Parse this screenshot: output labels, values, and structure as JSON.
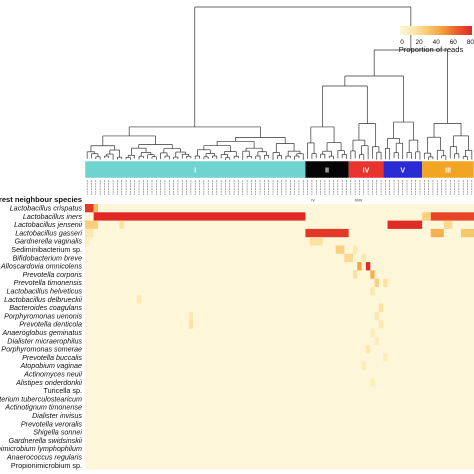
{
  "chart_data": {
    "type": "heatmap",
    "row_header": "rest neighbour species",
    "legend": {
      "title": "Proportion of reads",
      "ticks": [
        0,
        20,
        40,
        60,
        80
      ],
      "colors": [
        "#fdf6d8",
        "#fbe6a8",
        "#f9c56a",
        "#f39a3a",
        "#ea5a2a",
        "#e02a26"
      ]
    },
    "clusters": [
      {
        "label": "I",
        "color": "#6fd3d0",
        "text_color": "#ffffff",
        "count": 51
      },
      {
        "label": "II",
        "color": "#050505",
        "text_color": "#ffffff",
        "count": 10
      },
      {
        "label": "IV",
        "color": "#e8332e",
        "text_color": "#ffffff",
        "count": 8
      },
      {
        "label": "V",
        "color": "#2b2bd6",
        "text_color": "#ffffff",
        "count": 9
      },
      {
        "label": "III",
        "color": "#f2a524",
        "text_color": "#ffffff",
        "count": 12
      }
    ],
    "cluster_sublabels": [
      {
        "cluster": "II",
        "text": "IV"
      },
      {
        "cluster": "IV",
        "text": "IV/IV"
      }
    ],
    "sample_labels_note": "illegible",
    "species": [
      "Lactobacillus crispatus",
      "Lactobacillus iners",
      "Lactobacillus jensenii",
      "Lactobacillus gasseri",
      "Gardnerella vaginalis",
      "Sediminibacterium sp.",
      "Bifidobacterium breve",
      "Alloscardovia omnicolens",
      "Prevotella corporis",
      "Prevotella timonensis",
      "Lactobacillus helveticus",
      "Lactobacillus delbrueckii",
      "Bacteroides coagulans",
      "Porphyromonas uenonis",
      "Prevotella denticola",
      "Anaeroglobus geminatus",
      "Dialister micraerophilus",
      "Porphyromonas somerae",
      "Prevotella buccalis",
      "Atopobium vaginae",
      "Actinomyces neuii",
      "Alistipes onderdonkii",
      "Turicella sp.",
      "acterium tuberculostearicum",
      "Actinotignum timonense",
      "Dialister invisus",
      "Prevotella veroralis",
      "Shigella sonnei",
      "Gardnerella swidsinskii",
      "onimicrobium lymphophilum",
      "Anaerococcus regularis",
      "Propionimicrobium sp."
    ],
    "plain_species": [
      "Sediminibacterium sp.",
      "Turicella sp.",
      "Propionimicrobium sp."
    ],
    "highlights": [
      {
        "row": 0,
        "from": 0,
        "to": 1,
        "value": 85
      },
      {
        "row": 0,
        "from": 2,
        "to": 2,
        "value": 40
      },
      {
        "row": 1,
        "from": 2,
        "to": 50,
        "value": 90
      },
      {
        "row": 1,
        "from": 78,
        "to": 79,
        "value": 30
      },
      {
        "row": 1,
        "from": 80,
        "to": 89,
        "value": 80
      },
      {
        "row": 2,
        "from": 0,
        "to": 2,
        "value": 30
      },
      {
        "row": 2,
        "from": 8,
        "to": 8,
        "value": 20
      },
      {
        "row": 2,
        "from": 70,
        "to": 77,
        "value": 90
      },
      {
        "row": 2,
        "from": 83,
        "to": 84,
        "value": 25
      },
      {
        "row": 3,
        "from": 0,
        "to": 1,
        "value": 15
      },
      {
        "row": 3,
        "from": 51,
        "to": 60,
        "value": 85
      },
      {
        "row": 3,
        "from": 80,
        "to": 82,
        "value": 45
      },
      {
        "row": 3,
        "from": 87,
        "to": 89,
        "value": 35
      },
      {
        "row": 4,
        "from": 0,
        "to": 0,
        "value": 10
      },
      {
        "row": 4,
        "from": 52,
        "to": 54,
        "value": 20
      },
      {
        "row": 5,
        "from": 58,
        "to": 59,
        "value": 30
      },
      {
        "row": 5,
        "from": 62,
        "to": 62,
        "value": 15
      },
      {
        "row": 6,
        "from": 60,
        "to": 61,
        "value": 25
      },
      {
        "row": 6,
        "from": 64,
        "to": 64,
        "value": 15
      },
      {
        "row": 7,
        "from": 63,
        "to": 63,
        "value": 50
      },
      {
        "row": 7,
        "from": 65,
        "to": 65,
        "value": 90
      },
      {
        "row": 8,
        "from": 66,
        "to": 66,
        "value": 45
      },
      {
        "row": 8,
        "from": 62,
        "to": 62,
        "value": 20
      },
      {
        "row": 9,
        "from": 67,
        "to": 67,
        "value": 30
      },
      {
        "row": 9,
        "from": 69,
        "to": 69,
        "value": 20
      },
      {
        "row": 10,
        "from": 66,
        "to": 66,
        "value": 15
      },
      {
        "row": 11,
        "from": 12,
        "to": 12,
        "value": 15
      },
      {
        "row": 12,
        "from": 68,
        "to": 68,
        "value": 20
      },
      {
        "row": 13,
        "from": 24,
        "to": 24,
        "value": 15
      },
      {
        "row": 13,
        "from": 67,
        "to": 67,
        "value": 15
      },
      {
        "row": 14,
        "from": 24,
        "to": 24,
        "value": 20
      },
      {
        "row": 14,
        "from": 68,
        "to": 68,
        "value": 15
      },
      {
        "row": 15,
        "from": 66,
        "to": 66,
        "value": 10
      },
      {
        "row": 16,
        "from": 67,
        "to": 67,
        "value": 10
      },
      {
        "row": 17,
        "from": 65,
        "to": 65,
        "value": 15
      },
      {
        "row": 18,
        "from": 69,
        "to": 69,
        "value": 10
      },
      {
        "row": 19,
        "from": 64,
        "to": 64,
        "value": 10
      },
      {
        "row": 21,
        "from": 66,
        "to": 66,
        "value": 10
      }
    ]
  }
}
